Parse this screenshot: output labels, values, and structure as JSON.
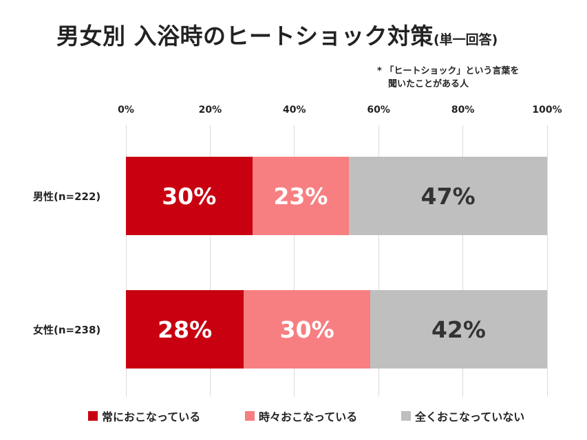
{
  "header": {
    "title_main": "男女別 入浴時のヒートショック対策",
    "title_sub": "(単一回答)"
  },
  "note": {
    "line1": "* 「ヒートショック」という言葉を",
    "line2": "聞いたことがある人"
  },
  "chart_data": {
    "type": "bar",
    "orientation": "horizontal",
    "stacked": true,
    "categories": [
      "男性(n=222)",
      "女性(n=238)"
    ],
    "x_ticks": [
      "0%",
      "20%",
      "40%",
      "60%",
      "80%",
      "100%"
    ],
    "xlim": [
      0,
      100
    ],
    "grid": true,
    "legend_position": "bottom",
    "series": [
      {
        "name": "常におこなっている",
        "values": [
          30,
          28
        ],
        "labels": [
          "30%",
          "28%"
        ],
        "color": "#c80010",
        "text_color": "#ffffff"
      },
      {
        "name": "時々おこなっている",
        "values": [
          23,
          30
        ],
        "labels": [
          "23%",
          "30%"
        ],
        "color": "#f77f82",
        "text_color": "#ffffff"
      },
      {
        "name": "全くおこなっていない",
        "values": [
          47,
          42
        ],
        "labels": [
          "47%",
          "42%"
        ],
        "color": "#bfbfbf",
        "text_color": "#333333"
      }
    ]
  }
}
